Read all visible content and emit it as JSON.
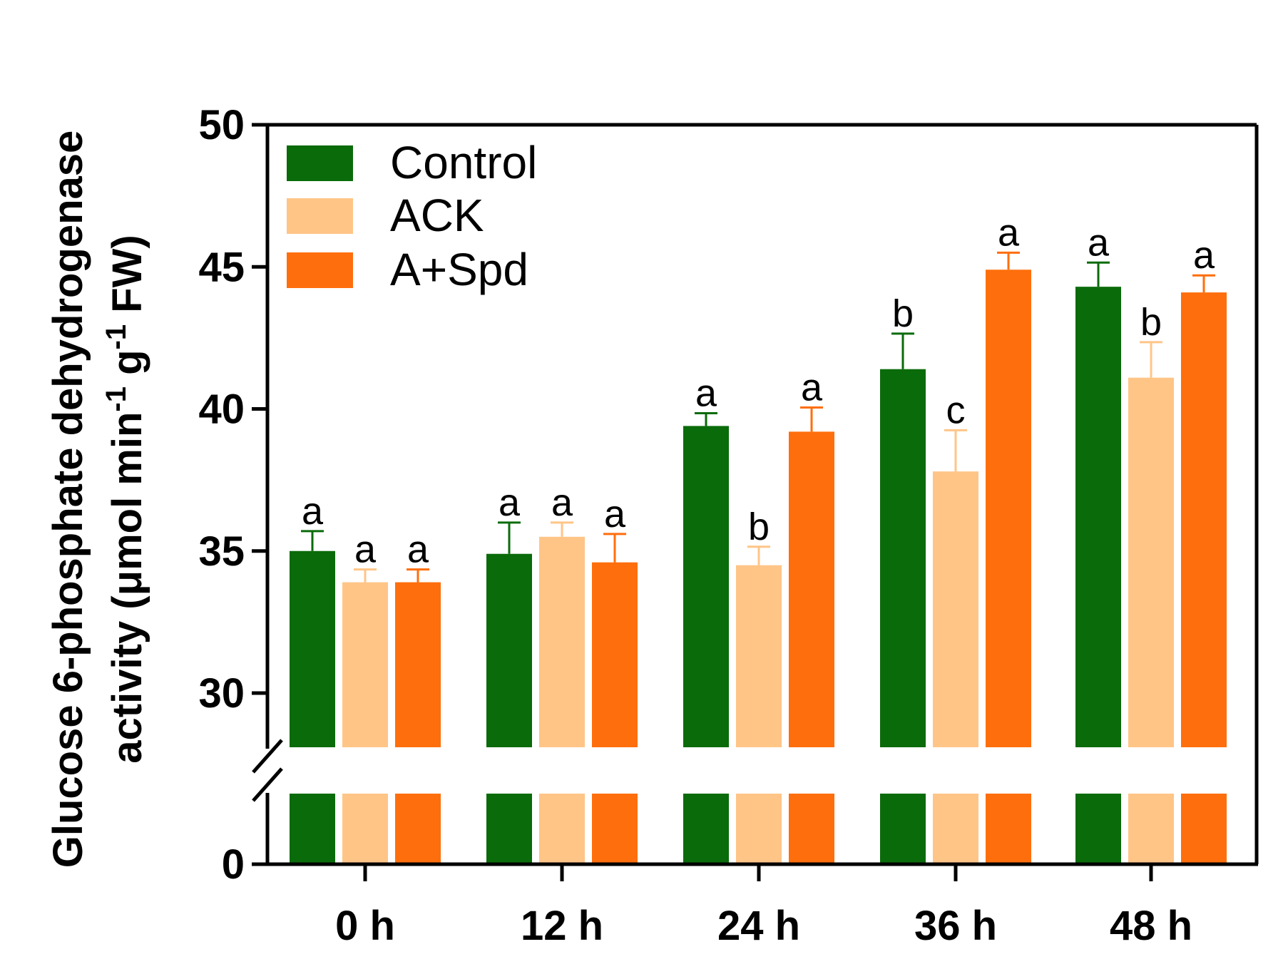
{
  "chart_data": {
    "type": "bar",
    "title": "",
    "xlabel": "",
    "ylabel_line1": "Glucose 6-phosphate dehydrogenase",
    "ylabel_line2_prefix": "activity (μmol min",
    "ylabel_sup1": "-1",
    "ylabel_mid": " g",
    "ylabel_sup2": "-1",
    "ylabel_suffix": " FW)",
    "categories": [
      "0 h",
      "12 h",
      "24 h",
      "36 h",
      "48 h"
    ],
    "y_ticks": [
      "0",
      "30",
      "35",
      "40",
      "45",
      "50"
    ],
    "ylim": [
      0,
      50
    ],
    "axis_break": "between 0 and 30",
    "legend_position": "top-left",
    "series": [
      {
        "name": "Control",
        "color": "#0a6b0a",
        "values": [
          35.0,
          34.9,
          39.4,
          41.4,
          44.3
        ],
        "errors": [
          0.7,
          1.1,
          0.45,
          1.25,
          0.85
        ],
        "letters": [
          "a",
          "a",
          "a",
          "b",
          "a"
        ]
      },
      {
        "name": "ACK",
        "color": "#ffc587",
        "values": [
          33.9,
          35.5,
          34.5,
          37.8,
          41.1
        ],
        "errors": [
          0.45,
          0.5,
          0.65,
          1.45,
          1.25
        ],
        "letters": [
          "a",
          "a",
          "b",
          "c",
          "b"
        ]
      },
      {
        "name": "A+Spd",
        "color": "#ff6e0c",
        "values": [
          33.9,
          34.6,
          39.2,
          44.9,
          44.1
        ],
        "errors": [
          0.45,
          1.0,
          0.85,
          0.6,
          0.6
        ],
        "letters": [
          "a",
          "a",
          "a",
          "a",
          "a"
        ]
      }
    ]
  }
}
